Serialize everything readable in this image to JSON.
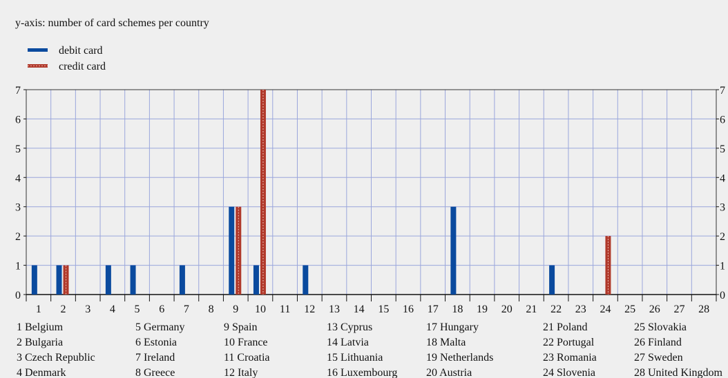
{
  "chart_data": {
    "type": "bar",
    "subtitle": "y-axis: number of card schemes per country",
    "ylim": [
      0,
      7
    ],
    "yticks": [
      0,
      1,
      2,
      3,
      4,
      5,
      6,
      7
    ],
    "grid": true,
    "legend_position": "top-left",
    "categories": [
      "1",
      "2",
      "3",
      "4",
      "5",
      "6",
      "7",
      "8",
      "9",
      "10",
      "11",
      "12",
      "13",
      "14",
      "15",
      "16",
      "17",
      "18",
      "19",
      "20",
      "21",
      "22",
      "23",
      "24",
      "25",
      "26",
      "27",
      "28"
    ],
    "series": [
      {
        "name": "debit card",
        "color": "#0a4a9e",
        "values": [
          1,
          1,
          0,
          1,
          1,
          0,
          1,
          0,
          3,
          1,
          0,
          1,
          0,
          0,
          0,
          0,
          0,
          3,
          0,
          0,
          0,
          1,
          0,
          0,
          0,
          0,
          0,
          0
        ]
      },
      {
        "name": "credit card",
        "color": "#b0392b",
        "values": [
          0,
          1,
          0,
          0,
          0,
          0,
          0,
          0,
          3,
          7,
          0,
          0,
          0,
          0,
          0,
          0,
          0,
          0,
          0,
          0,
          0,
          0,
          0,
          2,
          0,
          0,
          0,
          0
        ]
      }
    ],
    "country_key": [
      "1 Belgium",
      "2 Bulgaria",
      "3 Czech Republic",
      "4 Denmark",
      "5 Germany",
      "6 Estonia",
      "7 Ireland",
      "8 Greece",
      "9 Spain",
      "10 France",
      "11 Croatia",
      "12 Italy",
      "13 Cyprus",
      "14 Latvia",
      "15 Lithuania",
      "16 Luxembourg",
      "17 Hungary",
      "18 Malta",
      "19 Netherlands",
      "20 Austria",
      "21 Poland",
      "22 Portugal",
      "23 Romania",
      "24 Slovenia",
      "25 Slovakia",
      "26 Finland",
      "27 Sweden",
      "28 United Kingdom"
    ]
  }
}
